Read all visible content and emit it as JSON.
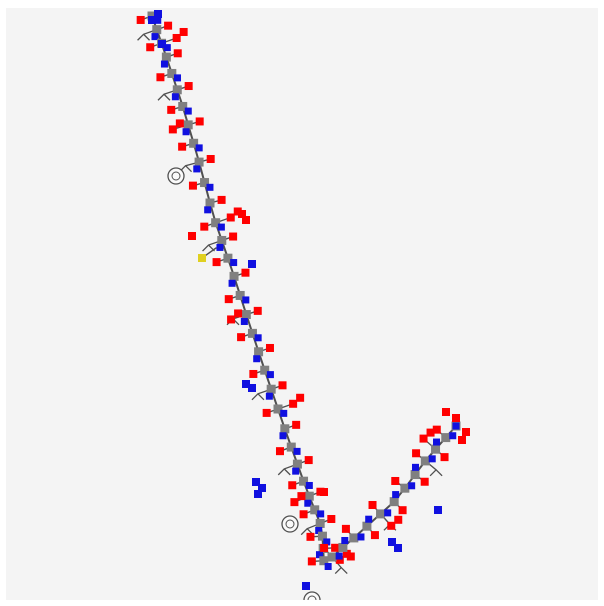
{
  "image": {
    "subject": "peptide-molecule-model",
    "background_color": "#f4f4f4",
    "colors": {
      "carbon": "#808080",
      "oxygen": "#ff0000",
      "nitrogen": "#1010e0",
      "sulfur": "#e0d020",
      "bond": "#505050"
    }
  }
}
